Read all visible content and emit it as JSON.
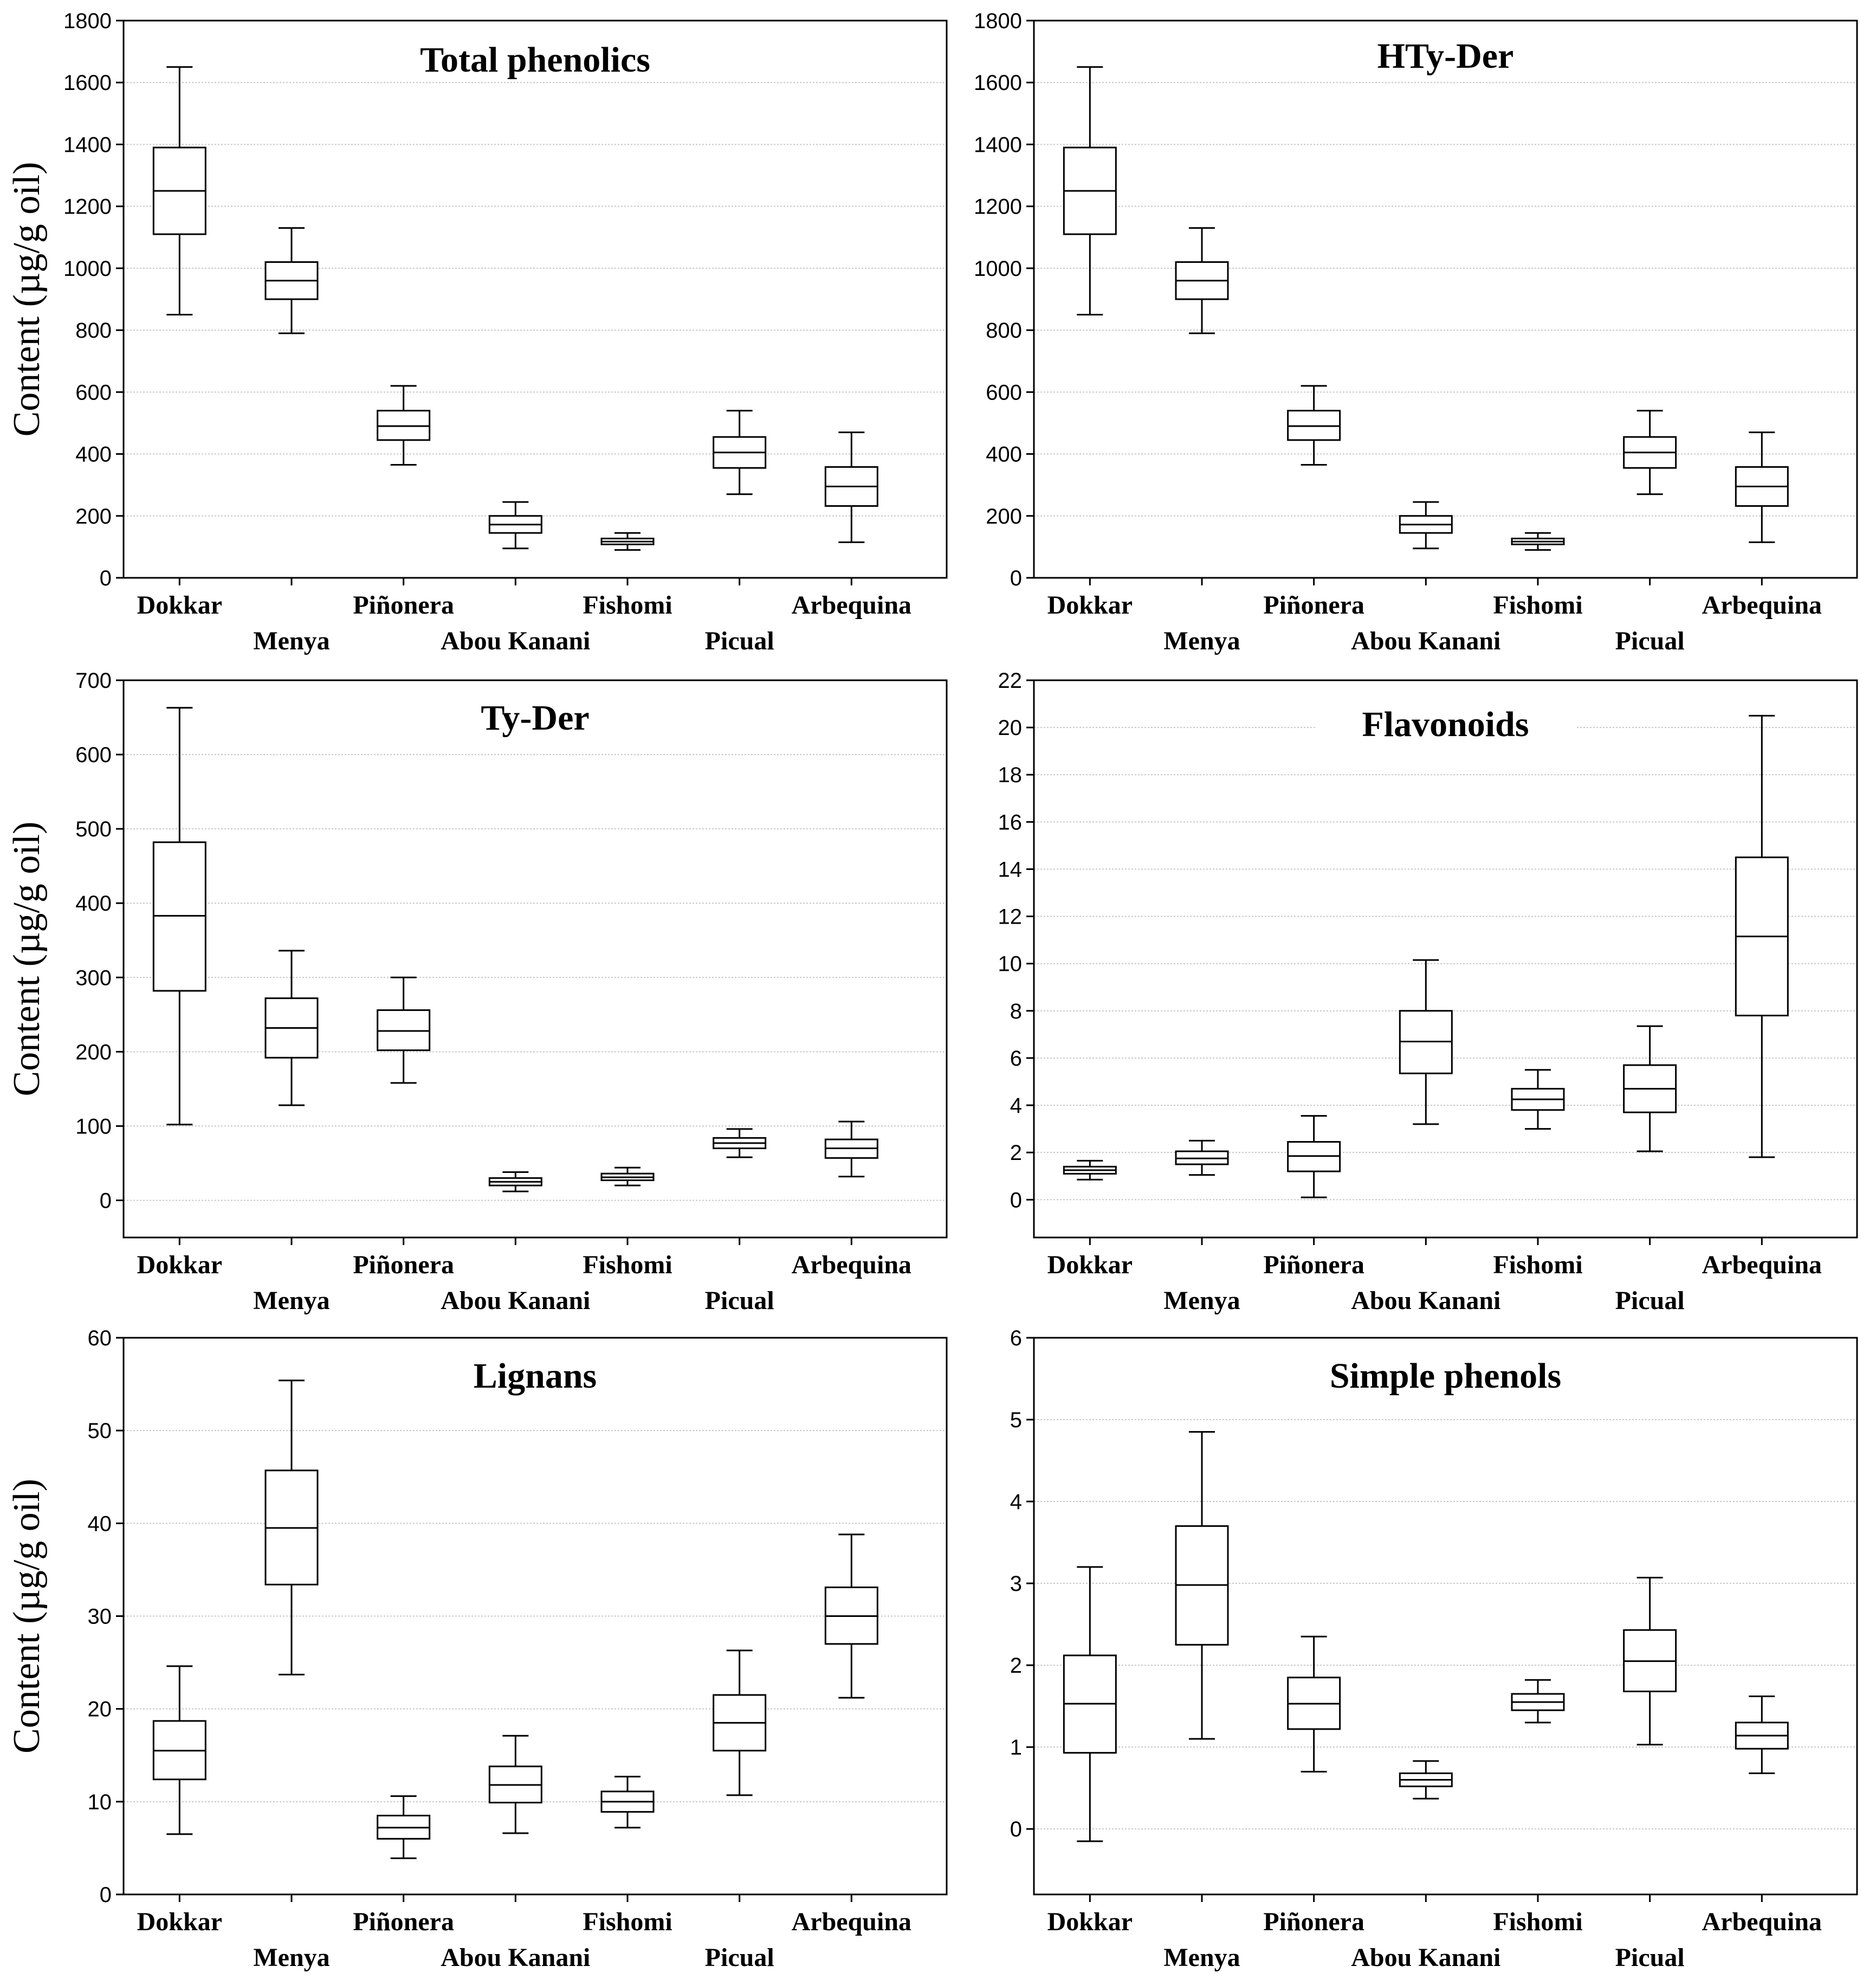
{
  "chart_data": [
    {
      "type": "boxplot",
      "title": "Total phenolics",
      "ylabel": "Content (µg/g oil)",
      "xlabel": "",
      "ylim": [
        0,
        1800
      ],
      "yticks": [
        0,
        200,
        400,
        600,
        800,
        1000,
        1200,
        1400,
        1600,
        1800
      ],
      "grid": true,
      "categories": [
        "Dokkar",
        "Menya",
        "Piñonera",
        "Abou Kanani",
        "Fishomi",
        "Picual",
        "Arbequina"
      ],
      "boxes": [
        {
          "min": 850,
          "q1": 1110,
          "median": 1250,
          "q3": 1390,
          "max": 1650
        },
        {
          "min": 790,
          "q1": 900,
          "median": 960,
          "q3": 1020,
          "max": 1130
        },
        {
          "min": 365,
          "q1": 445,
          "median": 490,
          "q3": 540,
          "max": 620
        },
        {
          "min": 95,
          "q1": 145,
          "median": 172,
          "q3": 200,
          "max": 245
        },
        {
          "min": 90,
          "q1": 108,
          "median": 117,
          "q3": 127,
          "max": 145
        },
        {
          "min": 270,
          "q1": 355,
          "median": 405,
          "q3": 455,
          "max": 540
        },
        {
          "min": 115,
          "q1": 232,
          "median": 295,
          "q3": 358,
          "max": 470
        }
      ]
    },
    {
      "type": "boxplot",
      "title": "HTy-Der",
      "ylabel": "",
      "xlabel": "",
      "ylim": [
        0,
        1800
      ],
      "yticks": [
        0,
        200,
        400,
        600,
        800,
        1000,
        1200,
        1400,
        1600,
        1800
      ],
      "grid": true,
      "categories": [
        "Dokkar",
        "Menya",
        "Piñonera",
        "Abou Kanani",
        "Fishomi",
        "Picual",
        "Arbequina"
      ],
      "boxes": [
        {
          "min": 850,
          "q1": 1110,
          "median": 1250,
          "q3": 1390,
          "max": 1650
        },
        {
          "min": 790,
          "q1": 900,
          "median": 960,
          "q3": 1020,
          "max": 1130
        },
        {
          "min": 365,
          "q1": 445,
          "median": 490,
          "q3": 540,
          "max": 620
        },
        {
          "min": 95,
          "q1": 145,
          "median": 172,
          "q3": 200,
          "max": 245
        },
        {
          "min": 90,
          "q1": 108,
          "median": 117,
          "q3": 127,
          "max": 145
        },
        {
          "min": 270,
          "q1": 355,
          "median": 405,
          "q3": 455,
          "max": 540
        },
        {
          "min": 115,
          "q1": 232,
          "median": 295,
          "q3": 358,
          "max": 470
        }
      ]
    },
    {
      "type": "boxplot",
      "title": "Ty-Der",
      "ylabel": "Content (µg/g oil)",
      "xlabel": "",
      "ylim": [
        -50,
        700
      ],
      "yticks": [
        0,
        100,
        200,
        300,
        400,
        500,
        600,
        700
      ],
      "grid": true,
      "categories": [
        "Dokkar",
        "Menya",
        "Piñonera",
        "Abou Kanani",
        "Fishomi",
        "Picual",
        "Arbequina"
      ],
      "boxes": [
        {
          "min": 102,
          "q1": 282,
          "median": 383,
          "q3": 482,
          "max": 663
        },
        {
          "min": 128,
          "q1": 192,
          "median": 232,
          "q3": 272,
          "max": 336
        },
        {
          "min": 158,
          "q1": 202,
          "median": 228,
          "q3": 256,
          "max": 300
        },
        {
          "min": 12,
          "q1": 20,
          "median": 25,
          "q3": 30,
          "max": 38
        },
        {
          "min": 20,
          "q1": 27,
          "median": 31,
          "q3": 36,
          "max": 44
        },
        {
          "min": 58,
          "q1": 70,
          "median": 77,
          "q3": 84,
          "max": 96
        },
        {
          "min": 32,
          "q1": 57,
          "median": 70,
          "q3": 82,
          "max": 106
        }
      ]
    },
    {
      "type": "boxplot",
      "title": "Flavonoids",
      "ylabel": "",
      "xlabel": "",
      "ylim": [
        -1.6,
        22
      ],
      "yticks": [
        0,
        2,
        4,
        6,
        8,
        10,
        12,
        14,
        16,
        18,
        20,
        22
      ],
      "grid": true,
      "categories": [
        "Dokkar",
        "Menya",
        "Piñonera",
        "Abou Kanani",
        "Fishomi",
        "Picual",
        "Arbequina"
      ],
      "boxes": [
        {
          "min": 0.85,
          "q1": 1.1,
          "median": 1.25,
          "q3": 1.4,
          "max": 1.65
        },
        {
          "min": 1.05,
          "q1": 1.5,
          "median": 1.75,
          "q3": 2.05,
          "max": 2.5
        },
        {
          "min": 0.1,
          "q1": 1.2,
          "median": 1.85,
          "q3": 2.45,
          "max": 3.55
        },
        {
          "min": 3.2,
          "q1": 5.35,
          "median": 6.7,
          "q3": 8.0,
          "max": 10.15
        },
        {
          "min": 3.0,
          "q1": 3.8,
          "median": 4.25,
          "q3": 4.7,
          "max": 5.5
        },
        {
          "min": 2.05,
          "q1": 3.7,
          "median": 4.7,
          "q3": 5.7,
          "max": 7.35
        },
        {
          "min": 1.8,
          "q1": 7.8,
          "median": 11.15,
          "q3": 14.5,
          "max": 20.5
        }
      ]
    },
    {
      "type": "boxplot",
      "title": "Lignans",
      "ylabel": "Content (µg/g oil)",
      "xlabel": "",
      "ylim": [
        0,
        60
      ],
      "yticks": [
        0,
        10,
        20,
        30,
        40,
        50,
        60
      ],
      "grid": true,
      "categories": [
        "Dokkar",
        "Menya",
        "Piñonera",
        "Abou Kanani",
        "Fishomi",
        "Picual",
        "Arbequina"
      ],
      "boxes": [
        {
          "min": 6.5,
          "q1": 12.4,
          "median": 15.5,
          "q3": 18.7,
          "max": 24.6
        },
        {
          "min": 23.7,
          "q1": 33.4,
          "median": 39.5,
          "q3": 45.7,
          "max": 55.4
        },
        {
          "min": 3.9,
          "q1": 6.0,
          "median": 7.2,
          "q3": 8.5,
          "max": 10.6
        },
        {
          "min": 6.6,
          "q1": 9.9,
          "median": 11.8,
          "q3": 13.8,
          "max": 17.1
        },
        {
          "min": 7.2,
          "q1": 8.9,
          "median": 10.0,
          "q3": 11.1,
          "max": 12.7
        },
        {
          "min": 10.7,
          "q1": 15.5,
          "median": 18.5,
          "q3": 21.5,
          "max": 26.3
        },
        {
          "min": 21.2,
          "q1": 27.0,
          "median": 30.0,
          "q3": 33.1,
          "max": 38.8
        }
      ]
    },
    {
      "type": "boxplot",
      "title": "Simple phenols",
      "ylabel": "",
      "xlabel": "",
      "ylim": [
        -0.8,
        6
      ],
      "yticks": [
        0,
        1,
        2,
        3,
        4,
        5,
        6
      ],
      "grid": true,
      "categories": [
        "Dokkar",
        "Menya",
        "Piñonera",
        "Abou Kanani",
        "Fishomi",
        "Picual",
        "Arbequina"
      ],
      "boxes": [
        {
          "min": -0.15,
          "q1": 0.93,
          "median": 1.53,
          "q3": 2.12,
          "max": 3.2
        },
        {
          "min": 1.1,
          "q1": 2.25,
          "median": 2.98,
          "q3": 3.7,
          "max": 4.85
        },
        {
          "min": 0.7,
          "q1": 1.22,
          "median": 1.53,
          "q3": 1.85,
          "max": 2.35
        },
        {
          "min": 0.37,
          "q1": 0.52,
          "median": 0.6,
          "q3": 0.68,
          "max": 0.83
        },
        {
          "min": 1.3,
          "q1": 1.45,
          "median": 1.55,
          "q3": 1.65,
          "max": 1.82
        },
        {
          "min": 1.03,
          "q1": 1.68,
          "median": 2.05,
          "q3": 2.43,
          "max": 3.07
        },
        {
          "min": 0.68,
          "q1": 0.98,
          "median": 1.14,
          "q3": 1.3,
          "max": 1.62
        }
      ]
    }
  ]
}
